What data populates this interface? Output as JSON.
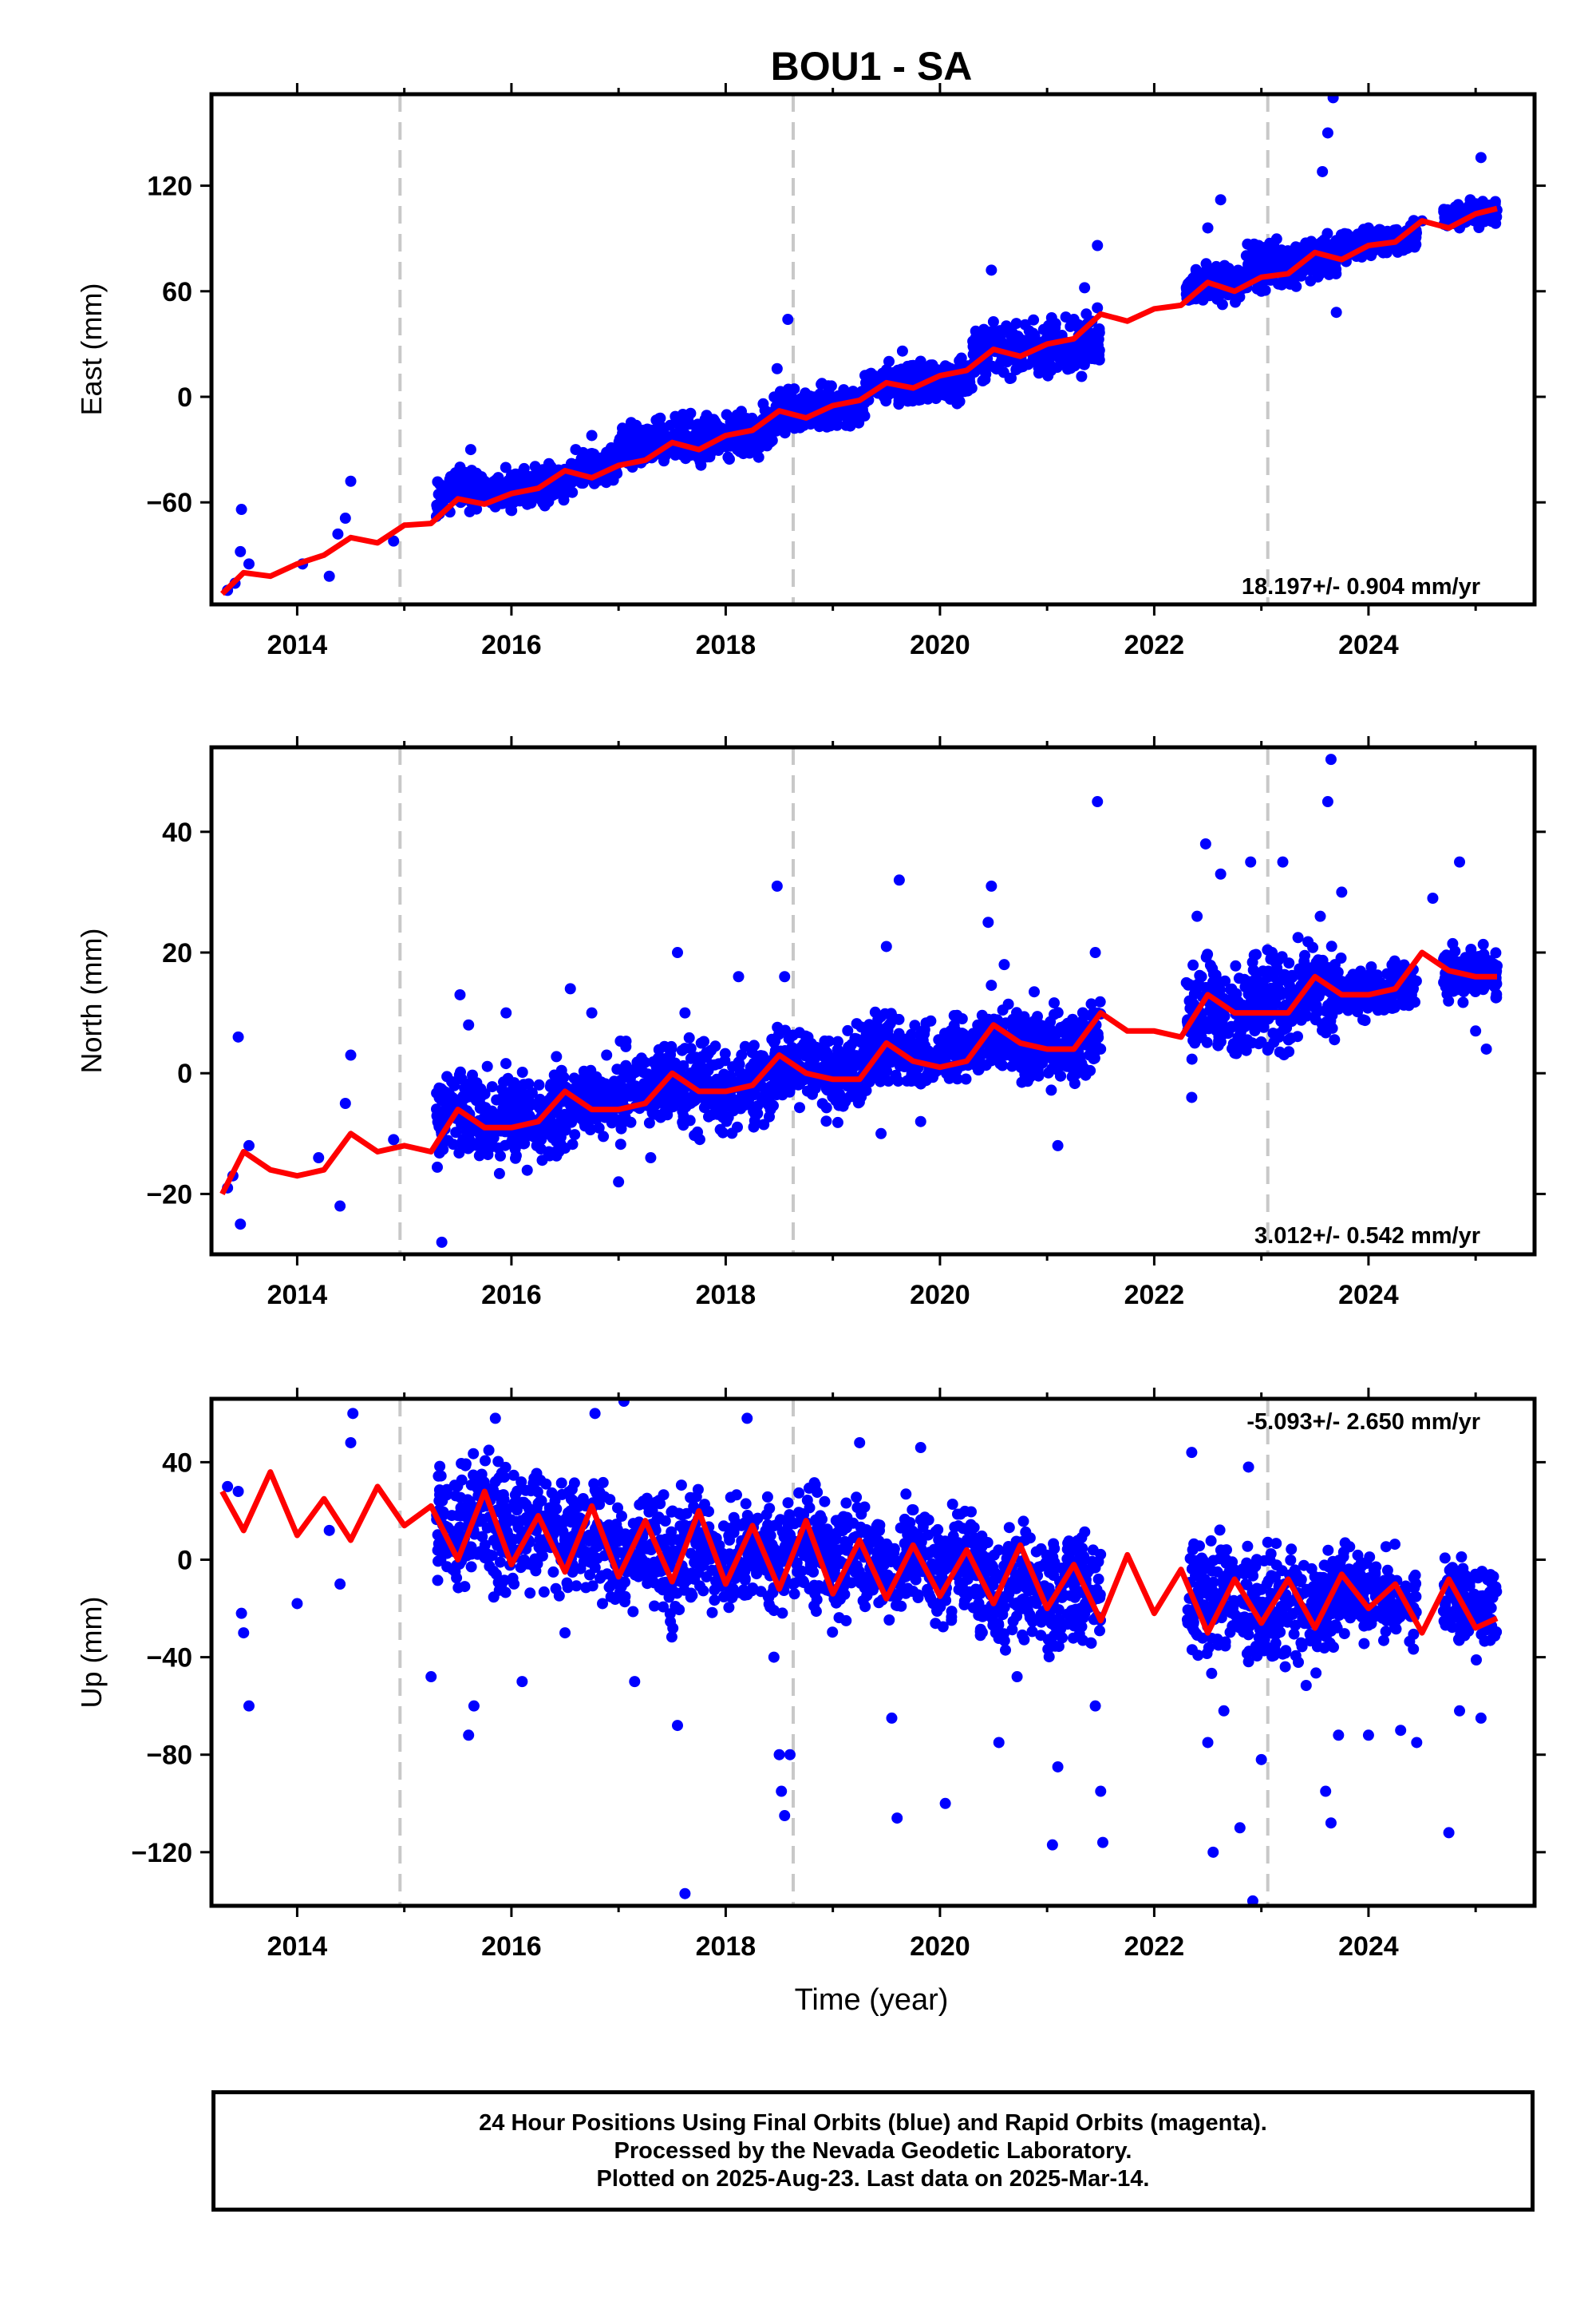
{
  "title": "BOU1 - SA",
  "xlabel": "Time (year)",
  "colors": {
    "points": "#0000ff",
    "model": "#ff0000",
    "breaks": "#c8c8c8",
    "axes": "#000000"
  },
  "x_ticks": [
    "2014",
    "2016",
    "2018",
    "2020",
    "2022",
    "2024"
  ],
  "caption": [
    "24 Hour Positions Using Final Orbits (blue) and Rapid Orbits (magenta).",
    "Processed by the Nevada Geodetic Laboratory.",
    "Plotted on 2025-Aug-23. Last data on 2025-Mar-14."
  ],
  "chart_data": [
    {
      "type": "scatter",
      "ylabel": "East (mm)",
      "xlim": [
        2013.2,
        2025.55
      ],
      "ylim": [
        -118,
        172
      ],
      "yticks": [
        -60,
        0,
        60,
        120
      ],
      "rate_label": "18.197+/- 0.904 mm/yr",
      "breaks": [
        2014.96,
        2018.63,
        2023.06
      ],
      "model": {
        "x": [
          2013.3,
          2013.5,
          2013.75,
          2014.0,
          2014.25,
          2014.5,
          2014.75,
          2015.0,
          2015.25,
          2015.5,
          2015.75,
          2016.0,
          2016.25,
          2016.5,
          2016.75,
          2017.0,
          2017.25,
          2017.5,
          2017.75,
          2018.0,
          2018.25,
          2018.5,
          2018.75,
          2019.0,
          2019.25,
          2019.5,
          2019.75,
          2020.0,
          2020.25,
          2020.5,
          2020.75,
          2021.0,
          2021.25,
          2021.5,
          2021.75,
          2022.0,
          2022.25,
          2022.5,
          2022.75,
          2023.0,
          2023.25,
          2023.5,
          2023.75,
          2024.0,
          2024.25,
          2024.5,
          2024.75,
          2025.0,
          2025.2
        ],
        "y": [
          -112,
          -100,
          -102,
          -95,
          -90,
          -80,
          -83,
          -73,
          -72,
          -58,
          -61,
          -55,
          -52,
          -42,
          -46,
          -39,
          -36,
          -26,
          -30,
          -22,
          -19,
          -8,
          -12,
          -5,
          -2,
          8,
          5,
          12,
          15,
          27,
          23,
          30,
          33,
          47,
          43,
          50,
          52,
          65,
          60,
          68,
          70,
          82,
          78,
          86,
          88,
          100,
          96,
          104,
          107
        ]
      },
      "points": [
        [
          2013.35,
          -110
        ],
        [
          2013.42,
          -106
        ],
        [
          2013.47,
          -88
        ],
        [
          2013.48,
          -64
        ],
        [
          2013.55,
          -95
        ],
        [
          2014.05,
          -95
        ],
        [
          2014.3,
          -102
        ],
        [
          2014.38,
          -78
        ],
        [
          2014.45,
          -69
        ],
        [
          2014.5,
          -48
        ],
        [
          2014.9,
          -82
        ],
        [
          2015.3,
          -68
        ],
        [
          2015.45,
          -58
        ],
        [
          2015.52,
          -40
        ],
        [
          2015.62,
          -30
        ],
        [
          2015.75,
          -48
        ],
        [
          2015.9,
          -60
        ],
        [
          2016.05,
          -55
        ],
        [
          2016.2,
          -48
        ],
        [
          2016.35,
          -38
        ],
        [
          2016.5,
          -42
        ],
        [
          2016.6,
          -30
        ],
        [
          2016.75,
          -22
        ],
        [
          2016.85,
          -46
        ],
        [
          2017.1,
          -38
        ],
        [
          2017.3,
          -30
        ],
        [
          2017.5,
          -24
        ],
        [
          2017.6,
          -10
        ],
        [
          2017.8,
          -28
        ],
        [
          2018.0,
          -22
        ],
        [
          2018.2,
          -16
        ],
        [
          2018.35,
          -4
        ],
        [
          2018.48,
          16
        ],
        [
          2018.58,
          44
        ],
        [
          2018.75,
          -12
        ],
        [
          2019.0,
          -6
        ],
        [
          2019.25,
          0
        ],
        [
          2019.5,
          14
        ],
        [
          2019.65,
          26
        ],
        [
          2019.8,
          6
        ],
        [
          2020.05,
          14
        ],
        [
          2020.2,
          22
        ],
        [
          2020.42,
          32
        ],
        [
          2020.48,
          72
        ],
        [
          2020.6,
          38
        ],
        [
          2020.8,
          30
        ],
        [
          2021.05,
          38
        ],
        [
          2021.25,
          44
        ],
        [
          2021.35,
          62
        ],
        [
          2021.47,
          86
        ],
        [
          2022.3,
          62
        ],
        [
          2022.5,
          96
        ],
        [
          2022.62,
          112
        ],
        [
          2022.75,
          70
        ],
        [
          2022.9,
          86
        ],
        [
          2023.0,
          60
        ],
        [
          2023.15,
          72
        ],
        [
          2023.3,
          82
        ],
        [
          2023.45,
          74
        ],
        [
          2023.57,
          128
        ],
        [
          2023.62,
          150
        ],
        [
          2023.67,
          170
        ],
        [
          2023.7,
          48
        ],
        [
          2023.85,
          84
        ],
        [
          2024.1,
          88
        ],
        [
          2024.3,
          92
        ],
        [
          2024.5,
          100
        ],
        [
          2024.72,
          104
        ],
        [
          2024.85,
          96
        ],
        [
          2024.95,
          112
        ],
        [
          2025.05,
          136
        ],
        [
          2025.15,
          108
        ]
      ],
      "cloud": [
        [
          2015.3,
          2016.6,
          -65,
          -35
        ],
        [
          2016.6,
          2017.0,
          -50,
          -25
        ],
        [
          2017.0,
          2018.45,
          -42,
          -5
        ],
        [
          2018.45,
          2019.3,
          -25,
          10
        ],
        [
          2019.3,
          2020.3,
          -10,
          25
        ],
        [
          2020.3,
          2021.5,
          5,
          48
        ],
        [
          2022.3,
          2022.85,
          52,
          80
        ],
        [
          2022.85,
          2023.7,
          60,
          95
        ],
        [
          2023.7,
          2024.45,
          78,
          100
        ],
        [
          2024.7,
          2025.2,
          95,
          115
        ]
      ]
    },
    {
      "type": "scatter",
      "ylabel": "North (mm)",
      "xlim": [
        2013.2,
        2025.55
      ],
      "ylim": [
        -30,
        54
      ],
      "yticks": [
        -20,
        0,
        20,
        40
      ],
      "rate_label": "3.012+/- 0.542 mm/yr",
      "breaks": [
        2014.96,
        2018.63,
        2023.06
      ],
      "model": {
        "x": [
          2013.3,
          2013.5,
          2013.75,
          2014.0,
          2014.25,
          2014.5,
          2014.75,
          2015.0,
          2015.25,
          2015.5,
          2015.75,
          2016.0,
          2016.25,
          2016.5,
          2016.75,
          2017.0,
          2017.25,
          2017.5,
          2017.75,
          2018.0,
          2018.25,
          2018.5,
          2018.75,
          2019.0,
          2019.25,
          2019.5,
          2019.75,
          2020.0,
          2020.25,
          2020.5,
          2020.75,
          2021.0,
          2021.25,
          2021.5,
          2021.75,
          2022.0,
          2022.25,
          2022.5,
          2022.75,
          2023.0,
          2023.25,
          2023.5,
          2023.75,
          2024.0,
          2024.25,
          2024.5,
          2024.75,
          2025.0,
          2025.2
        ],
        "y": [
          -20,
          -13,
          -16,
          -17,
          -16,
          -10,
          -13,
          -12,
          -13,
          -6,
          -9,
          -9,
          -8,
          -3,
          -6,
          -6,
          -5,
          0,
          -3,
          -3,
          -2,
          3,
          0,
          -1,
          -1,
          5,
          2,
          1,
          2,
          8,
          5,
          4,
          4,
          10,
          7,
          7,
          6,
          13,
          10,
          10,
          10,
          16,
          13,
          13,
          14,
          20,
          17,
          16,
          16
        ]
      },
      "points": [
        [
          2013.35,
          -19
        ],
        [
          2013.4,
          -17
        ],
        [
          2013.45,
          6
        ],
        [
          2013.47,
          -25
        ],
        [
          2013.55,
          -12
        ],
        [
          2014.2,
          -14
        ],
        [
          2014.4,
          -22
        ],
        [
          2014.45,
          -5
        ],
        [
          2014.5,
          3
        ],
        [
          2014.9,
          -11
        ],
        [
          2015.35,
          -28
        ],
        [
          2015.52,
          13
        ],
        [
          2015.6,
          8
        ],
        [
          2015.95,
          10
        ],
        [
          2016.55,
          14
        ],
        [
          2016.75,
          10
        ],
        [
          2017.0,
          -18
        ],
        [
          2017.3,
          -14
        ],
        [
          2017.55,
          20
        ],
        [
          2017.62,
          10
        ],
        [
          2018.12,
          16
        ],
        [
          2018.48,
          31
        ],
        [
          2018.55,
          16
        ],
        [
          2019.45,
          -10
        ],
        [
          2019.5,
          21
        ],
        [
          2019.62,
          32
        ],
        [
          2019.82,
          -8
        ],
        [
          2020.45,
          25
        ],
        [
          2020.48,
          31
        ],
        [
          2020.6,
          18
        ],
        [
          2021.1,
          -12
        ],
        [
          2021.45,
          20
        ],
        [
          2021.47,
          45
        ],
        [
          2022.3,
          15
        ],
        [
          2022.35,
          -4
        ],
        [
          2022.4,
          26
        ],
        [
          2022.48,
          38
        ],
        [
          2022.62,
          33
        ],
        [
          2022.9,
          35
        ],
        [
          2023.1,
          20
        ],
        [
          2023.2,
          35
        ],
        [
          2023.55,
          26
        ],
        [
          2023.62,
          45
        ],
        [
          2023.65,
          52
        ],
        [
          2023.75,
          30
        ],
        [
          2024.6,
          29
        ],
        [
          2024.85,
          35
        ],
        [
          2025.0,
          7
        ],
        [
          2025.1,
          4
        ]
      ],
      "cloud": [
        [
          2015.3,
          2016.6,
          -18,
          4
        ],
        [
          2016.6,
          2017.0,
          -12,
          5
        ],
        [
          2017.0,
          2018.45,
          -12,
          8
        ],
        [
          2018.45,
          2019.3,
          -8,
          10
        ],
        [
          2019.3,
          2020.3,
          -4,
          12
        ],
        [
          2020.3,
          2021.5,
          -4,
          14
        ],
        [
          2022.3,
          2022.85,
          0,
          22
        ],
        [
          2022.85,
          2023.7,
          2,
          25
        ],
        [
          2023.7,
          2024.45,
          8,
          20
        ],
        [
          2024.7,
          2025.2,
          10,
          22
        ]
      ]
    },
    {
      "type": "scatter",
      "ylabel": "Up (mm)",
      "xlim": [
        2013.2,
        2025.55
      ],
      "ylim": [
        -142,
        66
      ],
      "yticks": [
        -120,
        -80,
        -40,
        0,
        40
      ],
      "rate_label": "-5.093+/- 2.650 mm/yr",
      "breaks": [
        2014.96,
        2018.63,
        2023.06
      ],
      "model": {
        "x": [
          2013.3,
          2013.5,
          2013.75,
          2014.0,
          2014.25,
          2014.5,
          2014.75,
          2015.0,
          2015.25,
          2015.5,
          2015.75,
          2016.0,
          2016.25,
          2016.5,
          2016.75,
          2017.0,
          2017.25,
          2017.5,
          2017.75,
          2018.0,
          2018.25,
          2018.5,
          2018.75,
          2019.0,
          2019.25,
          2019.5,
          2019.75,
          2020.0,
          2020.25,
          2020.5,
          2020.75,
          2021.0,
          2021.25,
          2021.5,
          2021.75,
          2022.0,
          2022.25,
          2022.5,
          2022.75,
          2023.0,
          2023.25,
          2023.5,
          2023.75,
          2024.0,
          2024.25,
          2024.5,
          2024.75,
          2025.0,
          2025.2
        ],
        "y": [
          28,
          12,
          36,
          10,
          25,
          8,
          30,
          14,
          22,
          0,
          28,
          -2,
          18,
          -5,
          22,
          -7,
          16,
          -9,
          20,
          -10,
          14,
          -12,
          16,
          -14,
          8,
          -16,
          6,
          -15,
          4,
          -18,
          6,
          -20,
          -2,
          -25,
          2,
          -22,
          -4,
          -30,
          -8,
          -26,
          -8,
          -28,
          -6,
          -20,
          -10,
          -30,
          -8,
          -28,
          -24
        ]
      },
      "points": [
        [
          2013.35,
          30
        ],
        [
          2013.45,
          28
        ],
        [
          2013.48,
          -22
        ],
        [
          2013.5,
          -30
        ],
        [
          2013.55,
          -60
        ],
        [
          2014.0,
          -18
        ],
        [
          2014.3,
          12
        ],
        [
          2014.4,
          -10
        ],
        [
          2014.5,
          48
        ],
        [
          2014.52,
          60
        ],
        [
          2015.25,
          -48
        ],
        [
          2015.6,
          -72
        ],
        [
          2015.65,
          -60
        ],
        [
          2015.85,
          58
        ],
        [
          2016.1,
          -50
        ],
        [
          2016.5,
          -30
        ],
        [
          2016.78,
          60
        ],
        [
          2016.85,
          -18
        ],
        [
          2017.05,
          65
        ],
        [
          2017.15,
          -50
        ],
        [
          2017.55,
          -68
        ],
        [
          2017.62,
          -137
        ],
        [
          2018.2,
          58
        ],
        [
          2018.45,
          -40
        ],
        [
          2018.5,
          -80
        ],
        [
          2018.52,
          -95
        ],
        [
          2018.55,
          -105
        ],
        [
          2018.6,
          -80
        ],
        [
          2019.25,
          48
        ],
        [
          2019.55,
          -65
        ],
        [
          2019.6,
          -106
        ],
        [
          2019.82,
          46
        ],
        [
          2020.05,
          -100
        ],
        [
          2020.55,
          -75
        ],
        [
          2020.72,
          -48
        ],
        [
          2021.05,
          -117
        ],
        [
          2021.1,
          -85
        ],
        [
          2021.45,
          -60
        ],
        [
          2021.5,
          -95
        ],
        [
          2021.52,
          -116
        ],
        [
          2022.35,
          44
        ],
        [
          2022.5,
          -75
        ],
        [
          2022.55,
          -120
        ],
        [
          2022.65,
          -62
        ],
        [
          2022.8,
          -110
        ],
        [
          2022.88,
          38
        ],
        [
          2022.92,
          -140
        ],
        [
          2023.0,
          -82
        ],
        [
          2023.6,
          -95
        ],
        [
          2023.65,
          -108
        ],
        [
          2023.72,
          -72
        ],
        [
          2024.0,
          -72
        ],
        [
          2024.3,
          -70
        ],
        [
          2024.45,
          -75
        ],
        [
          2024.75,
          -112
        ],
        [
          2024.85,
          -62
        ],
        [
          2025.05,
          -65
        ]
      ],
      "cloud": [
        [
          2015.3,
          2016.6,
          -20,
          50
        ],
        [
          2016.6,
          2017.0,
          -25,
          40
        ],
        [
          2017.0,
          2018.45,
          -30,
          35
        ],
        [
          2018.45,
          2019.3,
          -30,
          40
        ],
        [
          2019.3,
          2020.3,
          -30,
          30
        ],
        [
          2020.3,
          2021.5,
          -45,
          20
        ],
        [
          2022.3,
          2022.85,
          -50,
          20
        ],
        [
          2022.85,
          2023.7,
          -55,
          15
        ],
        [
          2023.7,
          2024.45,
          -40,
          10
        ],
        [
          2024.7,
          2025.2,
          -40,
          8
        ]
      ]
    }
  ]
}
